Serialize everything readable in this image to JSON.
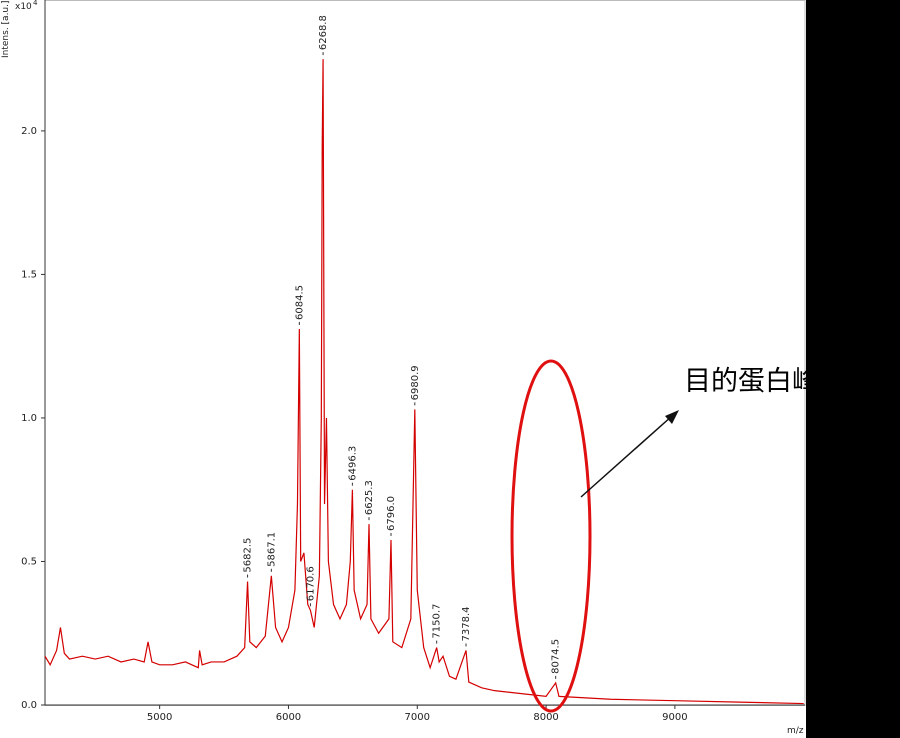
{
  "chart_data": {
    "type": "line",
    "y_axis_label": "Intens. [a.u.]",
    "y_multiplier": "x10",
    "y_multiplier_exponent": "4",
    "x_axis_label": "m/z",
    "annotation_text": "目的蛋白峰",
    "xlim": [
      4110,
      10010
    ],
    "ylim": [
      0,
      2.456
    ],
    "xticks": [
      5000,
      6000,
      7000,
      8000,
      9000
    ],
    "yticks": [
      {
        "value": 0,
        "label": "0.0"
      },
      0.5,
      {
        "value": 1,
        "label": "1.0"
      },
      1.5,
      {
        "value": 2,
        "label": "2.0"
      }
    ],
    "series": [
      {
        "color": "#d40000",
        "x": [
          4110,
          4150,
          4200,
          4230,
          4260,
          4300,
          4400,
          4500,
          4600,
          4700,
          4800,
          4880,
          4910,
          4940,
          5000,
          5100,
          5200,
          5300,
          5310,
          5330,
          5400,
          5500,
          5600,
          5660,
          5682.5,
          5700,
          5750,
          5820,
          5867.1,
          5900,
          5950,
          6000,
          6050,
          6070,
          6084.5,
          6095,
          6120,
          6150,
          6170.6,
          6200,
          6240,
          6255,
          6262,
          6268.8,
          6280,
          6295,
          6310,
          6350,
          6400,
          6450,
          6480,
          6496.3,
          6510,
          6560,
          6610,
          6625.3,
          6640,
          6700,
          6780,
          6796,
          6810,
          6880,
          6950,
          6980.9,
          7000,
          7050,
          7100,
          7150.7,
          7170,
          7200,
          7250,
          7300,
          7378.4,
          7400,
          7500,
          7600,
          7800,
          8000,
          8074.5,
          8100,
          8500,
          9000,
          9500,
          10000
        ],
        "values": [
          0.17,
          0.14,
          0.19,
          0.27,
          0.18,
          0.16,
          0.17,
          0.16,
          0.17,
          0.15,
          0.16,
          0.15,
          0.22,
          0.15,
          0.14,
          0.14,
          0.15,
          0.13,
          0.19,
          0.14,
          0.15,
          0.15,
          0.17,
          0.2,
          0.43,
          0.22,
          0.2,
          0.24,
          0.45,
          0.27,
          0.22,
          0.27,
          0.4,
          0.7,
          1.31,
          0.5,
          0.53,
          0.35,
          0.33,
          0.27,
          0.45,
          1.0,
          1.95,
          2.25,
          0.7,
          1.0,
          0.5,
          0.35,
          0.3,
          0.35,
          0.5,
          0.75,
          0.4,
          0.3,
          0.35,
          0.63,
          0.3,
          0.25,
          0.3,
          0.575,
          0.22,
          0.2,
          0.3,
          1.03,
          0.4,
          0.2,
          0.13,
          0.2,
          0.15,
          0.17,
          0.1,
          0.09,
          0.19,
          0.08,
          0.06,
          0.05,
          0.04,
          0.03,
          0.077,
          0.03,
          0.02,
          0.015,
          0.01,
          0.005
        ]
      }
    ],
    "peaks": [
      {
        "label": "5682.5",
        "x": 5682.5,
        "y": 0.43
      },
      {
        "label": "5867.1",
        "x": 5867.1,
        "y": 0.45
      },
      {
        "label": "6084.5",
        "x": 6084.5,
        "y": 1.31
      },
      {
        "label": "6170.6",
        "x": 6170.6,
        "y": 0.33
      },
      {
        "label": "6268.8",
        "x": 6268.8,
        "y": 2.25
      },
      {
        "label": "6496.3",
        "x": 6496.3,
        "y": 0.75
      },
      {
        "label": "6625.3",
        "x": 6625.3,
        "y": 0.63
      },
      {
        "label": "6796.0",
        "x": 6796.0,
        "y": 0.575
      },
      {
        "label": "6980.9",
        "x": 6980.9,
        "y": 1.03
      },
      {
        "label": "7150.7",
        "x": 7150.7,
        "y": 0.2
      },
      {
        "label": "7378.4",
        "x": 7378.4,
        "y": 0.19
      },
      {
        "label": "8074.5",
        "x": 8074.5,
        "y": 0.077
      }
    ]
  }
}
